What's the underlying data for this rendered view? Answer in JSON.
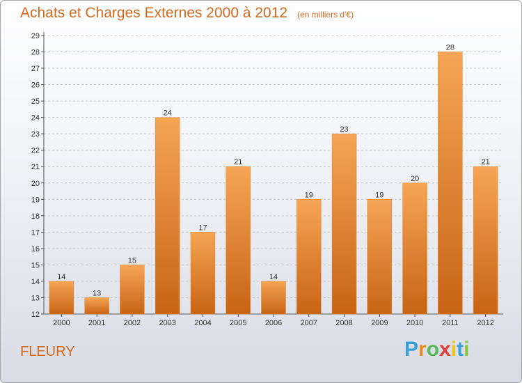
{
  "header": {
    "title": "Achats et Charges Externes 2000 à 2012",
    "unit": "(en milliers d'€)"
  },
  "footer": {
    "town": "FLEURY",
    "logo_letters": [
      "P",
      "r",
      "o",
      "x",
      "i",
      "t",
      "i"
    ],
    "logo_colors": [
      "#3aa0d8",
      "#f08c1e",
      "#5cb85c",
      "#e03c3c",
      "#f0c419",
      "#3aa0d8",
      "#8cc63e"
    ]
  },
  "colors": {
    "bar": "#f0963c",
    "bar_dark": "#c86414",
    "grid": "#c8c8c8",
    "title": "#d2691e"
  },
  "chart_data": {
    "type": "bar",
    "categories": [
      "2000",
      "2001",
      "2002",
      "2003",
      "2004",
      "2005",
      "2006",
      "2007",
      "2008",
      "2009",
      "2010",
      "2011",
      "2012"
    ],
    "values": [
      14,
      13,
      15,
      24,
      17,
      21,
      14,
      19,
      23,
      19,
      20,
      28,
      21
    ],
    "ylim": [
      12,
      29
    ],
    "yticks": [
      12,
      13,
      14,
      15,
      16,
      17,
      18,
      19,
      20,
      21,
      22,
      23,
      24,
      25,
      26,
      27,
      28,
      29
    ],
    "grid": true,
    "data_labels": true
  }
}
